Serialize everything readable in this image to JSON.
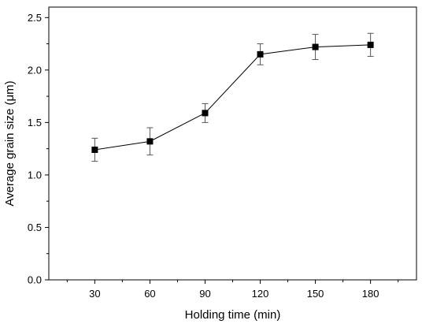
{
  "chart_data": {
    "type": "line",
    "xlabel": "Holding time (min)",
    "ylabel": "Average grain size (μm)",
    "x": [
      30,
      60,
      90,
      120,
      150,
      180
    ],
    "series": [
      {
        "values": [
          1.24,
          1.32,
          1.59,
          2.15,
          2.22,
          2.24
        ],
        "errors": [
          0.11,
          0.13,
          0.09,
          0.1,
          0.12,
          0.11
        ]
      }
    ],
    "x_ticks": [
      30,
      60,
      90,
      120,
      150,
      180
    ],
    "y_ticks": [
      0.0,
      0.5,
      1.0,
      1.5,
      2.0,
      2.5
    ],
    "x_tick_labels": [
      "30",
      "60",
      "90",
      "120",
      "150",
      "180"
    ],
    "y_tick_labels": [
      "0.0",
      "0.5",
      "1.0",
      "1.5",
      "2.0",
      "2.5"
    ],
    "xlim": [
      5,
      205
    ],
    "ylim": [
      0,
      2.6
    ],
    "grid": false,
    "marker": "filled-square",
    "colors": {
      "line": "#000000",
      "marker": "#000000",
      "error_bar": "#555555"
    }
  }
}
